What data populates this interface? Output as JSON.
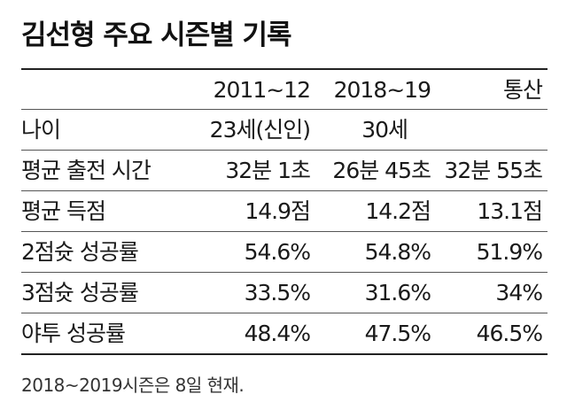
{
  "title": "김선형 주요 시즌별 기록",
  "table": {
    "columns": [
      "",
      "2011~12",
      "2018~19",
      "통산"
    ],
    "rows": [
      {
        "label": "나이",
        "values": [
          "23세(신인)",
          "30세",
          ""
        ]
      },
      {
        "label": "평균 출전 시간",
        "values": [
          "32분 1초",
          "26분 45초",
          "32분 55초"
        ]
      },
      {
        "label": "평균 득점",
        "values": [
          "14.9점",
          "14.2점",
          "13.1점"
        ]
      },
      {
        "label": "2점슛 성공률",
        "values": [
          "54.6%",
          "54.8%",
          "51.9%"
        ]
      },
      {
        "label": "3점슛 성공률",
        "values": [
          "33.5%",
          "31.6%",
          "34%"
        ]
      },
      {
        "label": "야투 성공률",
        "values": [
          "48.4%",
          "47.5%",
          "46.5%"
        ]
      }
    ]
  },
  "footnote": "2018~2019시즌은 8일 현재."
}
